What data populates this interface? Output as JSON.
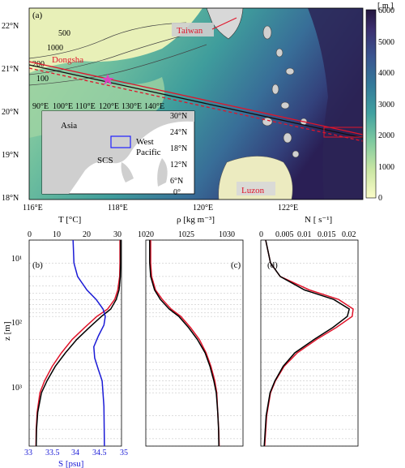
{
  "map": {
    "panel_label": "(a)",
    "lon_ticks": [
      "116°E",
      "118°E",
      "120°E",
      "122°E"
    ],
    "lat_ticks": [
      "22°N",
      "21°N",
      "20°N",
      "19°N",
      "18°N"
    ],
    "places": {
      "taiwan": "Taiwan",
      "dongsha": "Dongsha",
      "luzon": "Luzon"
    },
    "colorbar": {
      "unit": "[ m ]",
      "ticks": [
        "6000",
        "5000",
        "4000",
        "3000",
        "2000",
        "1000",
        "0"
      ],
      "range": [
        0,
        6000
      ]
    },
    "contour_labels": [
      "1000",
      "500",
      "200",
      "100"
    ],
    "inset": {
      "asia": "Asia",
      "west_pacific_1": "West",
      "west_pacific_2": "Pacific",
      "scs": "SCS",
      "lon_ticks": [
        "90°E",
        "100°E",
        "110°E",
        "120°E",
        "130°E",
        "140°E"
      ],
      "lat_ticks": [
        "30°N",
        "24°N",
        "18°N",
        "12°N",
        "6°N",
        "0°"
      ]
    },
    "colors": {
      "deep": "#2a1a4a",
      "shelf": "#f4f6c4",
      "mid": "#4fa89a",
      "land": "#d8d8d8",
      "marker": "#e040c0",
      "section": "#e0142a"
    }
  },
  "profiles": {
    "depth_axis": {
      "label": "z [m]",
      "scale": "log",
      "ticks": [
        "10¹",
        "10²",
        "10³"
      ]
    },
    "b": {
      "label": "(b)",
      "top_axis": "T [°C]",
      "top_ticks": [
        "0",
        "10",
        "20",
        "30"
      ],
      "bottom_axis": "S [psu]",
      "bottom_ticks": [
        "33",
        "33.5",
        "34",
        "34.5",
        "35"
      ]
    },
    "c": {
      "label": "(c)",
      "top_axis": "ρ [kg m⁻³]",
      "top_ticks": [
        "1020",
        "1025",
        "1030"
      ]
    },
    "d": {
      "label": "(d)",
      "top_axis": "N [ s⁻¹]",
      "top_ticks": [
        "0",
        "0.005",
        "0.01",
        "0.015",
        "0.02"
      ]
    }
  },
  "chart_data": [
    {
      "type": "line",
      "panel": "b",
      "series": [
        {
          "variable": "T",
          "color": "#e0142a",
          "x": [
            29.5,
            29.5,
            29.4,
            28.8,
            27.8,
            25.5,
            22,
            18,
            14,
            10.5,
            7.5,
            5,
            3.5,
            2.6,
            2.3,
            2.2
          ],
          "y": [
            10,
            20,
            30,
            45,
            60,
            80,
            100,
            140,
            200,
            300,
            450,
            700,
            1000,
            1800,
            3000,
            5000
          ]
        },
        {
          "variable": "T",
          "color": "#000000",
          "x": [
            29.7,
            29.7,
            29.6,
            29.2,
            28.3,
            26.5,
            23.5,
            19.5,
            15.5,
            11.8,
            8.5,
            5.8,
            4,
            2.8,
            2.4,
            2.3
          ],
          "y": [
            10,
            20,
            30,
            45,
            60,
            80,
            100,
            140,
            200,
            300,
            450,
            700,
            1000,
            1800,
            3000,
            5000
          ]
        },
        {
          "variable": "S",
          "color": "#1a1ad6",
          "x": [
            33.95,
            33.97,
            34.05,
            34.25,
            34.45,
            34.6,
            34.65,
            34.62,
            34.5,
            34.4,
            34.42,
            34.5,
            34.58,
            34.62,
            34.63
          ],
          "y": [
            10,
            20,
            30,
            45,
            60,
            80,
            100,
            130,
            180,
            250,
            350,
            500,
            700,
            1500,
            5000
          ]
        }
      ],
      "xlim_T": [
        0,
        30
      ],
      "xlim_S": [
        33,
        35
      ],
      "ylim": [
        10,
        5000
      ]
    },
    {
      "type": "line",
      "panel": "c",
      "series": [
        {
          "variable": "rho",
          "color": "#e0142a",
          "x": [
            1020.5,
            1020.5,
            1020.6,
            1021,
            1021.7,
            1022.6,
            1023.6,
            1024.6,
            1025.5,
            1026.2,
            1026.7,
            1027.1,
            1027.3,
            1027.4,
            1027.5,
            1027.55
          ],
          "y": [
            10,
            20,
            30,
            45,
            60,
            80,
            100,
            140,
            200,
            300,
            450,
            700,
            1000,
            1800,
            3000,
            5000
          ]
        },
        {
          "variable": "rho",
          "color": "#000000",
          "x": [
            1020.4,
            1020.4,
            1020.5,
            1020.9,
            1021.5,
            1022.4,
            1023.4,
            1024.4,
            1025.3,
            1026.1,
            1026.6,
            1027.0,
            1027.25,
            1027.4,
            1027.48,
            1027.52
          ],
          "y": [
            10,
            20,
            30,
            45,
            60,
            80,
            100,
            140,
            200,
            300,
            450,
            700,
            1000,
            1800,
            3000,
            5000
          ]
        }
      ],
      "xlim": [
        1020,
        1030
      ],
      "ylim": [
        10,
        5000
      ]
    },
    {
      "type": "line",
      "panel": "d",
      "series": [
        {
          "variable": "N",
          "color": "#e0142a",
          "x": [
            0.001,
            0.002,
            0.004,
            0.01,
            0.016,
            0.019,
            0.0188,
            0.0155,
            0.0115,
            0.0075,
            0.0048,
            0.003,
            0.002,
            0.0012,
            0.0008
          ],
          "y": [
            10,
            20,
            30,
            45,
            60,
            80,
            100,
            140,
            200,
            300,
            450,
            700,
            1000,
            2000,
            5000
          ]
        },
        {
          "variable": "N",
          "color": "#000000",
          "x": [
            0.001,
            0.002,
            0.004,
            0.009,
            0.015,
            0.0182,
            0.0178,
            0.0148,
            0.011,
            0.007,
            0.0046,
            0.0029,
            0.0019,
            0.0011,
            0.0007
          ],
          "y": [
            10,
            20,
            30,
            45,
            60,
            80,
            100,
            140,
            200,
            300,
            450,
            700,
            1000,
            2000,
            5000
          ]
        }
      ],
      "xlim": [
        0,
        0.02
      ],
      "ylim": [
        10,
        5000
      ]
    }
  ]
}
